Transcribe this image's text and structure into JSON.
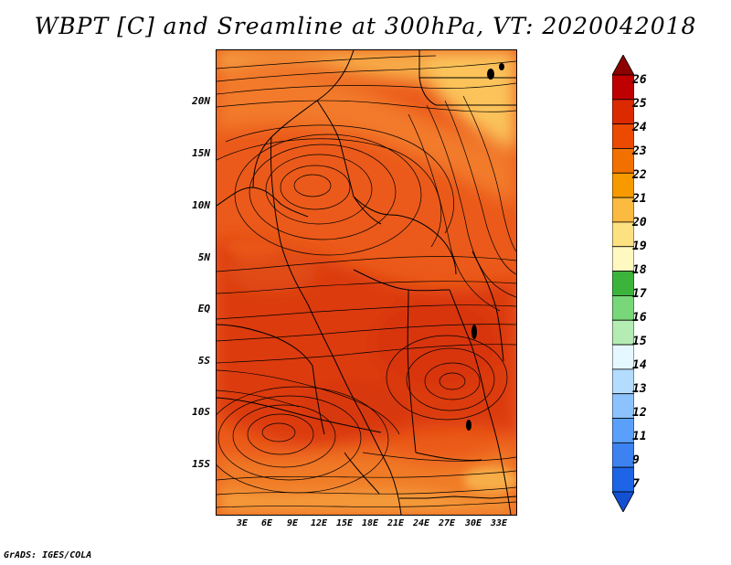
{
  "title": "WBPT [C] and Sreamline at 300hPa, VT: 2020042018",
  "footer": "GrADS: IGES/COLA",
  "map": {
    "lat_ticks": [
      "20N",
      "15N",
      "10N",
      "5N",
      "EQ",
      "5S",
      "10S",
      "15S"
    ],
    "lon_ticks": [
      "3E",
      "6E",
      "9E",
      "12E",
      "15E",
      "18E",
      "21E",
      "24E",
      "27E",
      "30E",
      "33E"
    ]
  },
  "colorbar": {
    "labels": [
      "26",
      "25",
      "24",
      "23",
      "22",
      "21",
      "20",
      "19",
      "18",
      "17",
      "16",
      "15",
      "14",
      "13",
      "12",
      "11",
      "9",
      "7"
    ],
    "colors": [
      "#8c0000",
      "#be0000",
      "#dc2a00",
      "#eb4a00",
      "#f27000",
      "#f79a00",
      "#fbba40",
      "#fde080",
      "#fff8c0",
      "#3cb43c",
      "#78d778",
      "#b4ecb4",
      "#e6f8ff",
      "#b4dcff",
      "#8cc3ff",
      "#5aa0fa",
      "#3c82f0",
      "#1e64e6",
      "#1450d2"
    ]
  },
  "colors": {
    "warm_base": "#eb5a1a",
    "hot": "#dc3a10",
    "mild": "#f28a2a",
    "cool": "#f7ae48",
    "streamline": "#000000",
    "border": "#000000"
  }
}
